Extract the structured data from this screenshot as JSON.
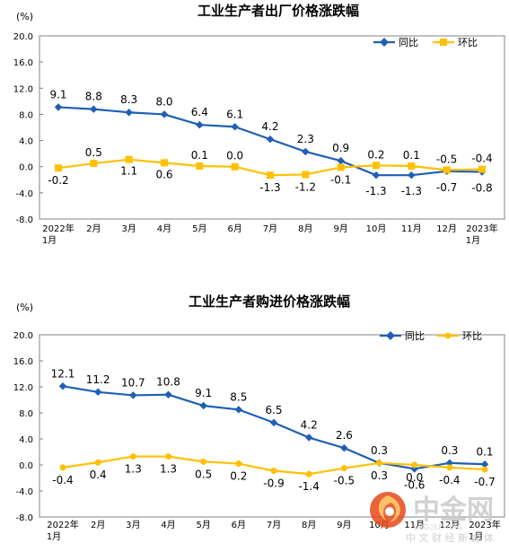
{
  "colors": {
    "yoy": "#1f5fb5",
    "mom": "#ffc000",
    "axis": "#808080",
    "grid": "#d9d9d9",
    "text": "#000000",
    "watermark_red": "#e64a19",
    "watermark_text": "#c8c8c8"
  },
  "watermark": {
    "brand": "中金网",
    "sub": "CNGOLD.ORG",
    "tagline": "中 文 财 经 新 媒 体"
  },
  "chart_data": [
    {
      "type": "line",
      "title": "工业生产者出厂价格涨跌幅",
      "unit_label": "(%)",
      "categories": [
        "2022年\n1月",
        "2月",
        "3月",
        "4月",
        "5月",
        "6月",
        "7月",
        "8月",
        "9月",
        "10月",
        "11月",
        "12月",
        "2023年\n1月"
      ],
      "ylim": [
        -8.0,
        20.0
      ],
      "yticks": [
        "20.0",
        "16.0",
        "12.0",
        "8.0",
        "4.0",
        "0.0",
        "-4.0",
        "-8.0"
      ],
      "ytick_values": [
        20,
        16,
        12,
        8,
        4,
        0,
        -4,
        -8
      ],
      "legend_position": "top-right",
      "series": [
        {
          "name": "同比",
          "color_key": "yoy",
          "values": [
            9.1,
            8.8,
            8.3,
            8.0,
            6.4,
            6.1,
            4.2,
            2.3,
            0.9,
            -1.3,
            -1.3,
            -0.7,
            -0.8
          ],
          "labels": [
            "9.1",
            "8.8",
            "8.3",
            "8.0",
            "6.4",
            "6.1",
            "4.2",
            "2.3",
            "0.9",
            "-1.3",
            "-1.3",
            "-0.7",
            "-0.8"
          ]
        },
        {
          "name": "环比",
          "color_key": "mom",
          "values": [
            -0.2,
            0.5,
            1.1,
            0.6,
            0.1,
            0.0,
            -1.3,
            -1.2,
            -0.1,
            0.2,
            0.1,
            -0.5,
            -0.4
          ],
          "labels": [
            "-0.2",
            "0.5",
            "1.1",
            "0.6",
            "0.1",
            "0.0",
            "-1.3",
            "-1.2",
            "-0.1",
            "0.2",
            "0.1",
            "-0.5",
            "-0.4"
          ]
        }
      ]
    },
    {
      "type": "line",
      "title": "工业生产者购进价格涨跌幅",
      "unit_label": "(%)",
      "categories": [
        "2022年\n1月",
        "2月",
        "3月",
        "4月",
        "5月",
        "6月",
        "7月",
        "8月",
        "9月",
        "10月",
        "11月",
        "12月",
        "2023年\n1月"
      ],
      "ylim": [
        -8.0,
        20.0
      ],
      "yticks": [
        "20.0",
        "16.0",
        "12.0",
        "8.0",
        "4.0",
        "0.0",
        "-4.0",
        "-8.0"
      ],
      "ytick_values": [
        20,
        16,
        12,
        8,
        4,
        0,
        -4,
        -8
      ],
      "legend_position": "top-right",
      "series": [
        {
          "name": "同比",
          "color_key": "yoy",
          "values": [
            12.1,
            11.2,
            10.7,
            10.8,
            9.1,
            8.5,
            6.5,
            4.2,
            2.6,
            0.3,
            -0.6,
            0.3,
            0.1
          ],
          "labels": [
            "12.1",
            "11.2",
            "10.7",
            "10.8",
            "9.1",
            "8.5",
            "6.5",
            "4.2",
            "2.6",
            "0.3",
            "-0.6",
            "0.3",
            "0.1"
          ]
        },
        {
          "name": "环比",
          "color_key": "mom",
          "values": [
            -0.4,
            0.4,
            1.3,
            1.3,
            0.5,
            0.2,
            -0.9,
            -1.4,
            -0.5,
            0.3,
            0.0,
            -0.4,
            -0.7
          ],
          "labels": [
            "-0.4",
            "0.4",
            "1.3",
            "1.3",
            "0.5",
            "0.2",
            "-0.9",
            "-1.4",
            "-0.5",
            "0.3",
            "0.0",
            "-0.4",
            "-0.7"
          ]
        }
      ]
    }
  ]
}
